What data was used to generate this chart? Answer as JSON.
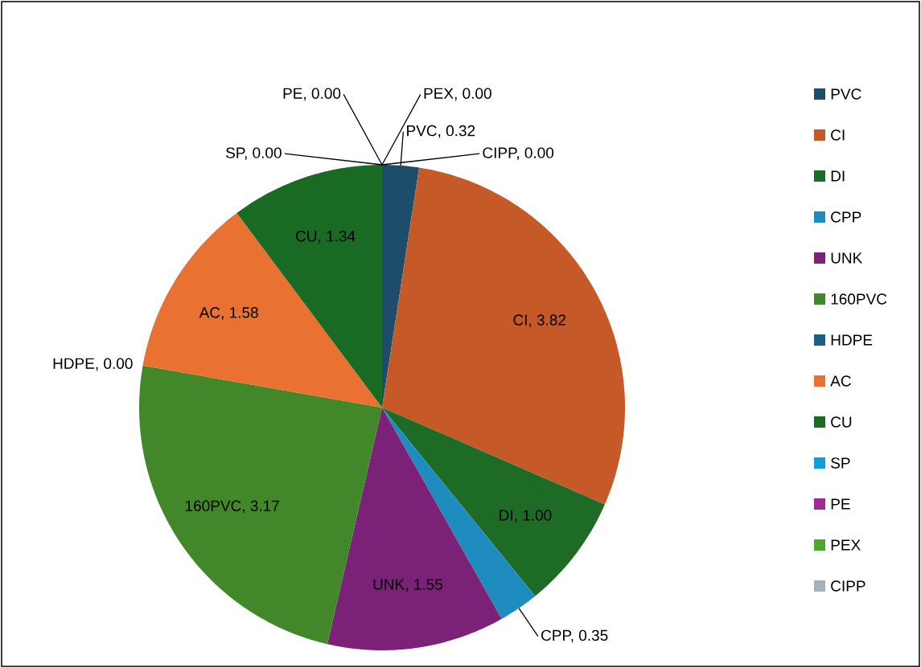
{
  "chart_data": {
    "type": "pie",
    "categories": [
      "PVC",
      "CI",
      "DI",
      "CPP",
      "UNK",
      "160PVC",
      "HDPE",
      "AC",
      "CU",
      "SP",
      "PE",
      "PEX",
      "CIPP"
    ],
    "values": [
      0.32,
      3.82,
      1.0,
      0.35,
      1.55,
      3.17,
      0.0,
      1.58,
      1.34,
      0.0,
      0.0,
      0.0,
      0.0
    ],
    "colors": [
      "#1e4d6b",
      "#c55a28",
      "#1e6b26",
      "#1f8cbf",
      "#7b2177",
      "#42882a",
      "#1f5f85",
      "#e97132",
      "#196b24",
      "#0f9ed5",
      "#a02b93",
      "#4ea72e",
      "#a5b2be"
    ],
    "value_labels": [
      "PVC, 0.32",
      "CI, 3.82",
      "DI, 1.00",
      "CPP, 0.35",
      "UNK, 1.55",
      "160PVC, 3.17",
      "HDPE, 0.00",
      "AC, 1.58",
      "CU, 1.34",
      "SP, 0.00",
      "PE, 0.00",
      "PEX, 0.00",
      "CIPP, 0.00"
    ],
    "legend": "right"
  }
}
